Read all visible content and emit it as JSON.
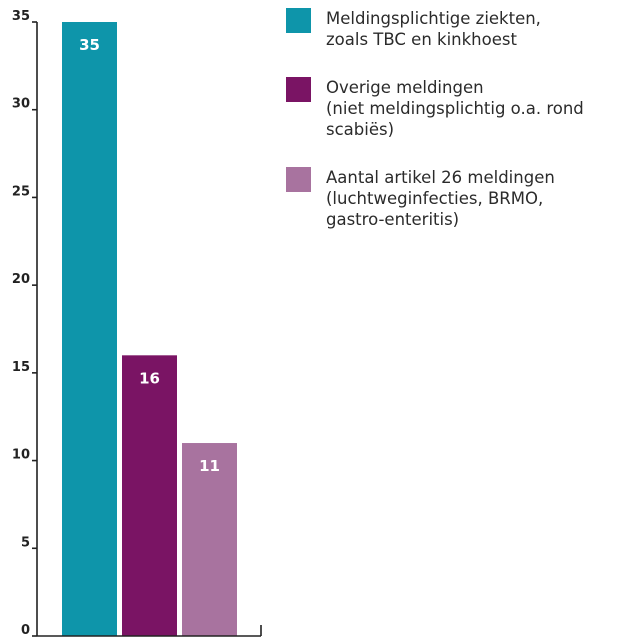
{
  "chart_data": {
    "type": "bar",
    "categories": [
      "Meldingsplichtige ziekten, zoals TBC en kinkhoest",
      "Overige meldingen (niet meldingsplichtig o.a. rond scabiës)",
      "Aantal artikel 26 meldingen (luchtweginfecties, BRMO, gastro-enteritis)"
    ],
    "values": [
      35,
      16,
      11
    ],
    "data_labels": [
      "35",
      "16",
      "11"
    ],
    "colors": [
      "#0e95aa",
      "#7a1464",
      "#a8739f"
    ],
    "ylim": [
      0,
      35
    ],
    "yticks": [
      0,
      5,
      10,
      15,
      20,
      25,
      30,
      35
    ],
    "ytick_labels": [
      "0",
      "5",
      "10",
      "15",
      "20",
      "25",
      "30",
      "35"
    ],
    "grid": false,
    "legend_position": "top-right",
    "title": "",
    "xlabel": "",
    "ylabel": ""
  },
  "legend": {
    "items": [
      {
        "label": "Meldingsplichtige ziekten,\nzoals TBC en kinkhoest",
        "color": "#0e95aa"
      },
      {
        "label": "Overige meldingen\n(niet meldingsplichtig o.a. rond\nscabiës)",
        "color": "#7a1464"
      },
      {
        "label": "Aantal artikel 26 meldingen\n(luchtweginfecties, BRMO,\ngastro-enteritis)",
        "color": "#a8739f"
      }
    ]
  }
}
